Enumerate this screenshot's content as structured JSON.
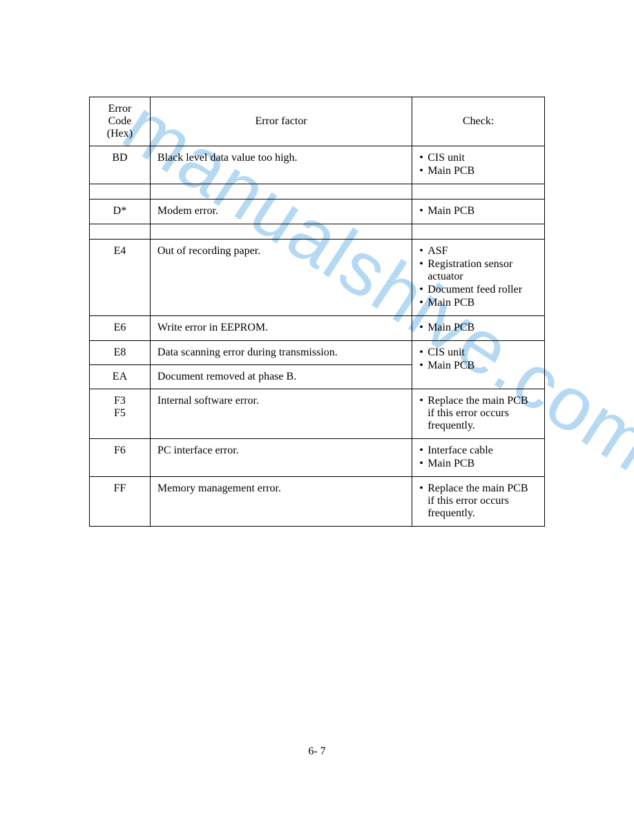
{
  "watermark_text": "manualshive.com",
  "page_number": "6- 7",
  "table": {
    "headers": {
      "code": "Error Code\n(Hex)",
      "factor": "Error factor",
      "check": "Check:"
    },
    "rows": [
      {
        "code": "BD",
        "factor": "Black level data value too high.",
        "checks": [
          "CIS unit",
          "Main PCB"
        ]
      },
      {
        "type": "empty"
      },
      {
        "code": "D*",
        "factor": "Modem error.",
        "checks": [
          "Main PCB"
        ]
      },
      {
        "type": "empty"
      },
      {
        "code": "E4",
        "factor": "Out of recording paper.",
        "checks": [
          "ASF",
          "Registration sensor actuator",
          "Document feed roller",
          "Main PCB"
        ]
      },
      {
        "code": "E6",
        "factor": "Write error in EEPROM.",
        "checks": [
          "Main PCB"
        ]
      },
      {
        "code": "E8",
        "factor": "Data scanning error during transmission.",
        "checks": [
          "CIS unit",
          "Main PCB"
        ],
        "merge_check_below": true
      },
      {
        "code": "EA",
        "factor": "Document removed at phase B.",
        "merged_check": true
      },
      {
        "code": "F3\nF5",
        "factor": "Internal software error.",
        "checks": [
          "Replace the main PCB if this error occurs frequently."
        ]
      },
      {
        "code": "F6",
        "factor": "PC interface error.",
        "checks": [
          "Interface cable",
          "Main PCB"
        ]
      },
      {
        "code": "FF",
        "factor": "Memory management error.",
        "checks": [
          "Replace the main PCB if this error occurs frequently."
        ]
      }
    ]
  }
}
